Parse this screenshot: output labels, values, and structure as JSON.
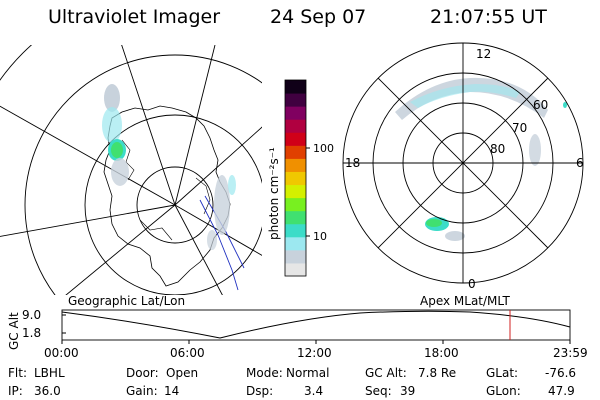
{
  "header": {
    "title": "Ultraviolet Imager",
    "date": "24 Sep 07",
    "time": "21:07:55 UT"
  },
  "colorbar": {
    "unit_label": "photon cm⁻²s⁻¹",
    "ticks": [
      "100",
      "10"
    ],
    "colors": [
      "#e6e6e6",
      "#c8d2dc",
      "#9ce8f0",
      "#3cdcc8",
      "#40e070",
      "#78f020",
      "#d4f000",
      "#f0c800",
      "#f09000",
      "#e04000",
      "#d00018",
      "#b00040",
      "#800060",
      "#400040",
      "#100018"
    ]
  },
  "geo_map": {
    "label": "Geographic Lat/Lon"
  },
  "polar_map": {
    "label": "Apex MLat/MLT",
    "mlt_labels": {
      "top": "12",
      "left": "18",
      "right": "6",
      "bottom": "0"
    },
    "lat_labels": [
      "60",
      "70",
      "80"
    ]
  },
  "alt_plot": {
    "ylabel": "GC Alt",
    "y_ticks": [
      "9.0",
      "1.8"
    ],
    "x_ticks": [
      "00:00",
      "06:00",
      "12:00",
      "18:00",
      "23:59"
    ],
    "current_time_marker": "21:07:55"
  },
  "status": {
    "flt": {
      "label": "Flt:",
      "value": "LBHL"
    },
    "ip": {
      "label": "IP:",
      "value": "36.0"
    },
    "door": {
      "label": "Door:",
      "value": "Open"
    },
    "gain": {
      "label": "Gain:",
      "value": "14"
    },
    "mode": {
      "label": "Mode:",
      "value": "Normal"
    },
    "dsp": {
      "label": "Dsp:",
      "value": "3.4"
    },
    "gc_alt": {
      "label": "GC Alt:",
      "value": "7.8 Re"
    },
    "seq": {
      "label": "Seq:",
      "value": "39"
    },
    "glat": {
      "label": "GLat:",
      "value": "-76.6"
    },
    "glon": {
      "label": "GLon:",
      "value": "47.9"
    }
  }
}
